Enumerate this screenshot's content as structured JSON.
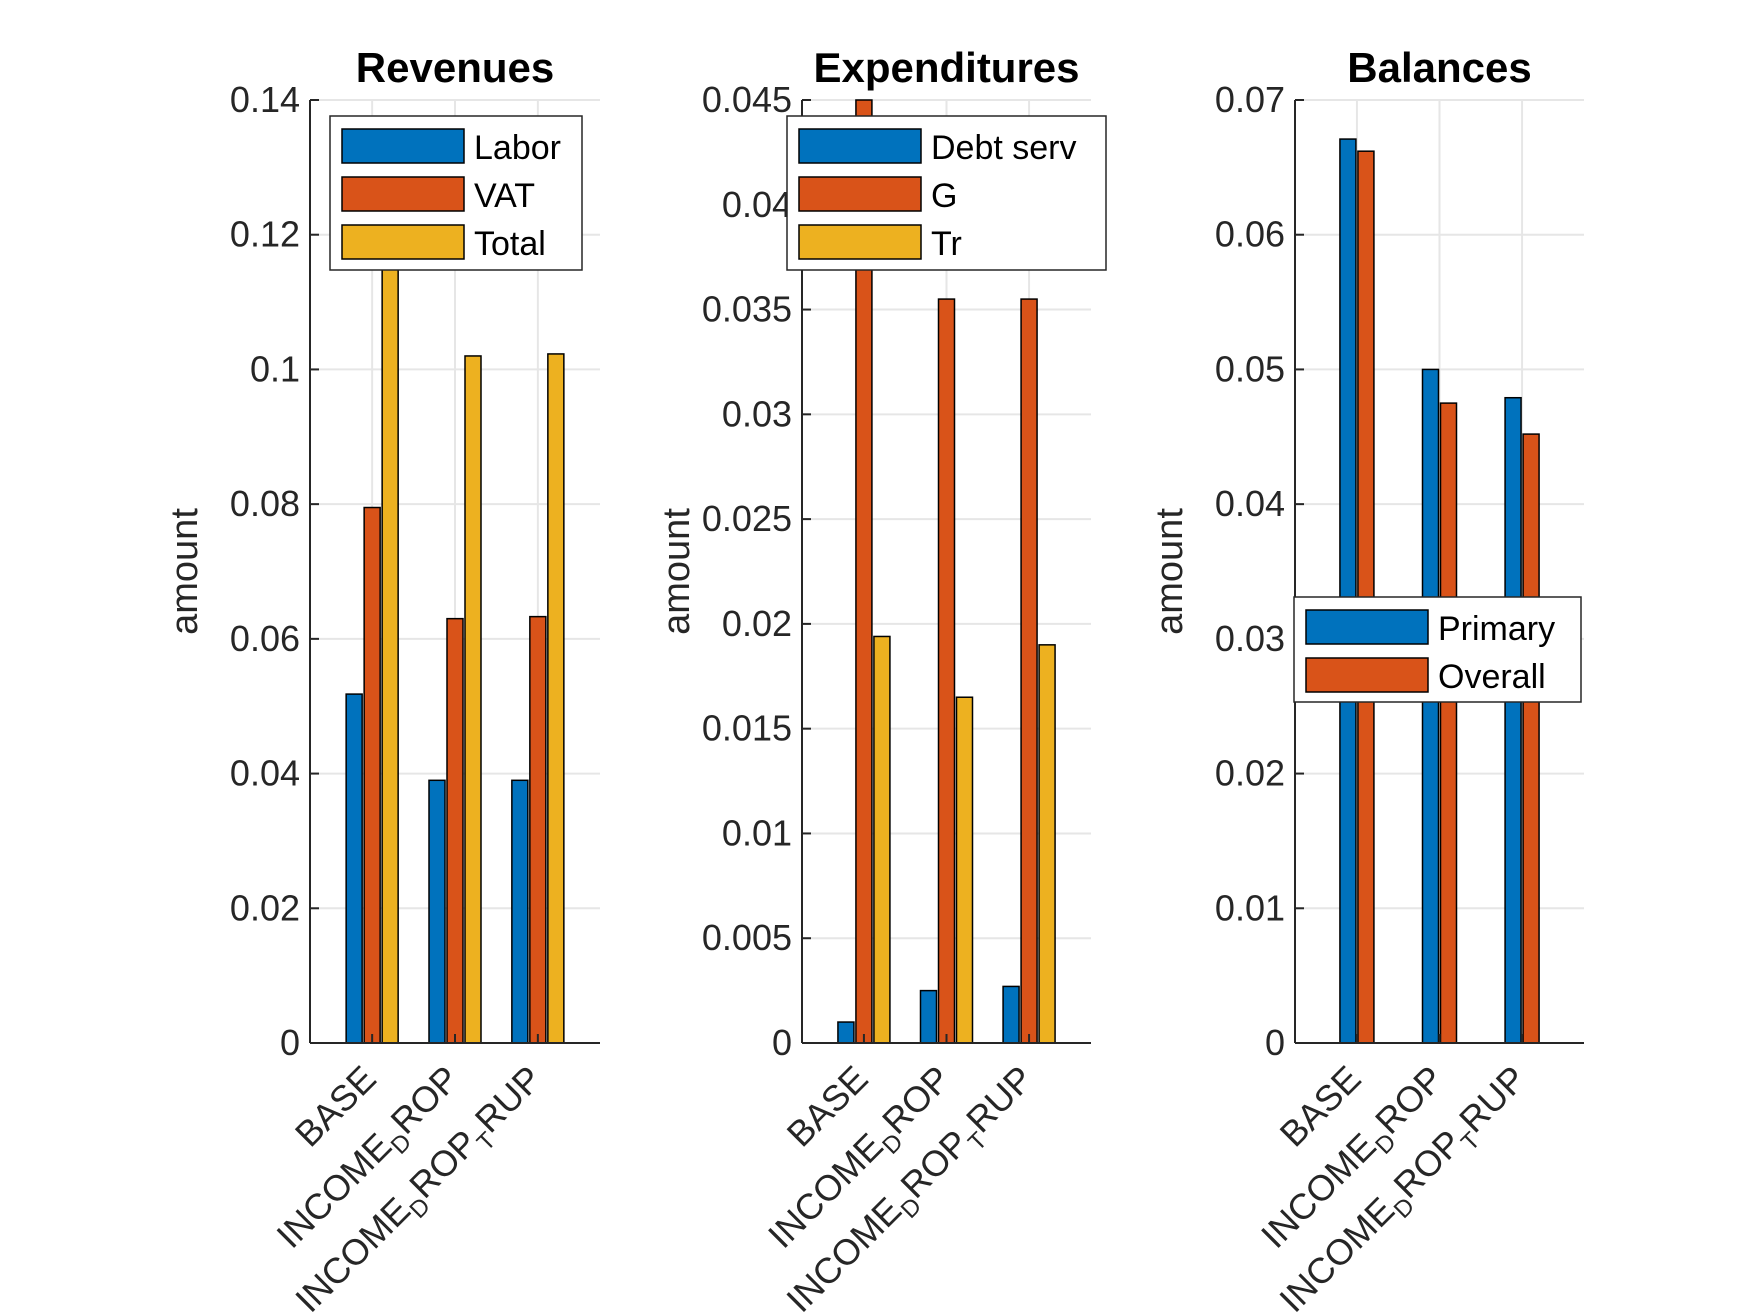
{
  "chart_data": [
    {
      "type": "bar",
      "title": "Revenues",
      "xlabel": "",
      "ylabel": "amount",
      "ylim": [
        0,
        0.14
      ],
      "yticks": [
        "0",
        "0.02",
        "0.04",
        "0.06",
        "0.08",
        "0.1",
        "0.12",
        "0.14"
      ],
      "categories": [
        {
          "main": "BASE",
          "sub1": "",
          "rest": "",
          "sub2": "",
          "tail": ""
        },
        {
          "main": "INCOME",
          "sub1": "D",
          "rest": "ROP",
          "sub2": "",
          "tail": ""
        },
        {
          "main": "INCOME",
          "sub1": "D",
          "rest": "ROP",
          "sub2": "T",
          "tail": "RUP"
        }
      ],
      "series": [
        {
          "name": "Labor",
          "color": "#0072BD",
          "values": [
            0.0518,
            0.039,
            0.039
          ]
        },
        {
          "name": "VAT",
          "color": "#D95319",
          "values": [
            0.0795,
            0.063,
            0.0633
          ]
        },
        {
          "name": "Total",
          "color": "#EDB120",
          "values": [
            0.1313,
            0.102,
            0.1023
          ]
        }
      ],
      "legend": "top-right",
      "grid": true
    },
    {
      "type": "bar",
      "title": "Expenditures",
      "xlabel": "",
      "ylabel": "amount",
      "ylim": [
        0,
        0.045
      ],
      "yticks": [
        "0",
        "0.005",
        "0.01",
        "0.015",
        "0.02",
        "0.025",
        "0.03",
        "0.035",
        "0.04",
        "0.045"
      ],
      "categories": [
        {
          "main": "BASE",
          "sub1": "",
          "rest": "",
          "sub2": "",
          "tail": ""
        },
        {
          "main": "INCOME",
          "sub1": "D",
          "rest": "ROP",
          "sub2": "",
          "tail": ""
        },
        {
          "main": "INCOME",
          "sub1": "D",
          "rest": "ROP",
          "sub2": "T",
          "tail": "RUP"
        }
      ],
      "series": [
        {
          "name": "Debt serv",
          "color": "#0072BD",
          "values": [
            0.001,
            0.0025,
            0.0027
          ]
        },
        {
          "name": "G",
          "color": "#D95319",
          "values": [
            0.045,
            0.0355,
            0.0355
          ]
        },
        {
          "name": "Tr",
          "color": "#EDB120",
          "values": [
            0.0194,
            0.0165,
            0.019
          ]
        }
      ],
      "legend": "top-right",
      "grid": true
    },
    {
      "type": "bar",
      "title": "Balances",
      "xlabel": "",
      "ylabel": "amount",
      "ylim": [
        0,
        0.07
      ],
      "yticks": [
        "0",
        "0.01",
        "0.02",
        "0.03",
        "0.04",
        "0.05",
        "0.06",
        "0.07"
      ],
      "categories": [
        {
          "main": "BASE",
          "sub1": "",
          "rest": "",
          "sub2": "",
          "tail": ""
        },
        {
          "main": "INCOME",
          "sub1": "D",
          "rest": "ROP",
          "sub2": "",
          "tail": ""
        },
        {
          "main": "INCOME",
          "sub1": "D",
          "rest": "ROP",
          "sub2": "T",
          "tail": "RUP"
        }
      ],
      "series": [
        {
          "name": "Primary",
          "color": "#0072BD",
          "values": [
            0.0671,
            0.05,
            0.0479
          ]
        },
        {
          "name": "Overall",
          "color": "#D95319",
          "values": [
            0.0662,
            0.0475,
            0.0452
          ]
        }
      ],
      "legend": "right",
      "grid": true
    }
  ]
}
